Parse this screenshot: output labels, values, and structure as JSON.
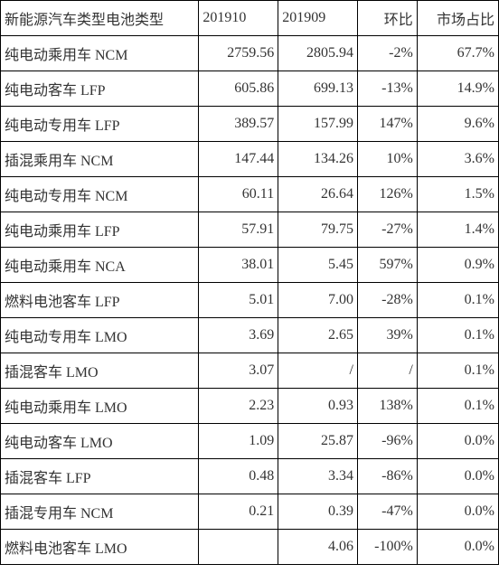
{
  "table": {
    "columns": [
      "新能源汽车类型电池类型",
      "201910",
      "201909",
      "环比",
      "市场占比"
    ],
    "rows": [
      [
        "纯电动乘用车 NCM",
        "2759.56",
        "2805.94",
        "-2%",
        "67.7%"
      ],
      [
        "纯电动客车 LFP",
        "605.86",
        "699.13",
        "-13%",
        "14.9%"
      ],
      [
        "纯电动专用车 LFP",
        "389.57",
        "157.99",
        "147%",
        "9.6%"
      ],
      [
        "插混乘用车 NCM",
        "147.44",
        "134.26",
        "10%",
        "3.6%"
      ],
      [
        "纯电动专用车 NCM",
        "60.11",
        "26.64",
        "126%",
        "1.5%"
      ],
      [
        "纯电动乘用车 LFP",
        "57.91",
        "79.75",
        "-27%",
        "1.4%"
      ],
      [
        "纯电动乘用车 NCA",
        "38.01",
        "5.45",
        "597%",
        "0.9%"
      ],
      [
        "燃料电池客车 LFP",
        "5.01",
        "7.00",
        "-28%",
        "0.1%"
      ],
      [
        "纯电动专用车 LMO",
        "3.69",
        "2.65",
        "39%",
        "0.1%"
      ],
      [
        "插混客车 LMO",
        "3.07",
        "/",
        "/",
        "0.1%"
      ],
      [
        "纯电动乘用车 LMO",
        "2.23",
        "0.93",
        "138%",
        "0.1%"
      ],
      [
        "纯电动客车 LMO",
        "1.09",
        "25.87",
        "-96%",
        "0.0%"
      ],
      [
        "插混客车 LFP",
        "0.48",
        "3.34",
        "-86%",
        "0.0%"
      ],
      [
        "插混专用车 NCM",
        "0.21",
        "0.39",
        "-47%",
        "0.0%"
      ],
      [
        "燃料电池客车 LMO",
        "",
        "4.06",
        "-100%",
        "0.0%"
      ]
    ],
    "header_align": [
      "left",
      "left",
      "left",
      "right",
      "right"
    ],
    "border_color": "#000000",
    "text_color": "#333333",
    "font_size": 16
  }
}
